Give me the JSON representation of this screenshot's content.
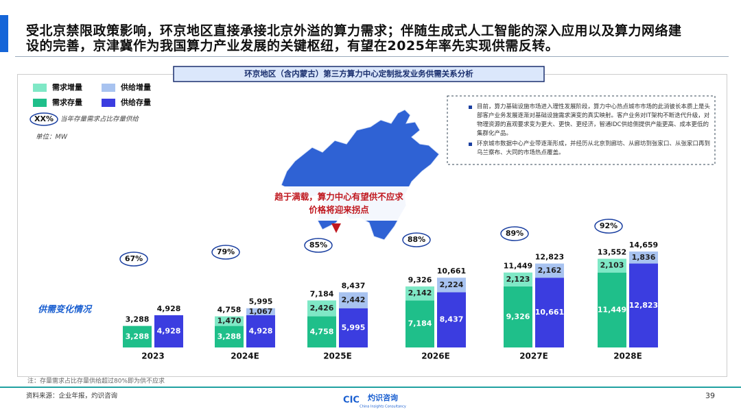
{
  "header": {
    "lines": [
      "受北京禁限政策影响，环京地区直接承接北京外溢的算力需求；伴随生成式人工智能的深入应用以及算力网络建",
      "设的完善，京津冀作为我国算力产业发展的关键枢纽，有望在2025年率先实现供需反转。"
    ]
  },
  "chart_data": {
    "type": "bar",
    "stacked": true,
    "title": "环京地区（含内蒙古）第三方算力中心定制批发业务供需关系分析",
    "unit": "单位：MW",
    "section_label": "供需变化情况",
    "ratio_legend": {
      "label": "XX%",
      "text": "当年存量需求占比存量供给"
    },
    "callout": [
      "趋于满载，算力中心有望供不应求",
      "价格将迎来拐点"
    ],
    "notes": [
      "目前，算力基础设施市场进入理性发展阶段，算力中心热点城市市场的此消彼长本质上是头部客户业务发展逐渐对基础设施需求演变的真实映射。客户业务对IT架构不断迭代升级，对物理资源的直观要求变为更大、更快、更经济，智通IDC供给侧提供产能更高、成本更低的集群化产品。",
      "环京城市数据中心产业带逐渐形成，并经历从北京到廊坊、从廊坊到张家口、从张家口再到乌兰察布、大同的市场热点覆盖。"
    ],
    "categories": [
      "2023",
      "2024E",
      "2025E",
      "2026E",
      "2027E",
      "2028E"
    ],
    "series": [
      {
        "name": "需求存量",
        "color": "#1fbf8a",
        "values": [
          3288,
          3288,
          4758,
          7184,
          9326,
          11449
        ],
        "value_labels": [
          "3,288",
          "3,288",
          "4,758",
          "7,184",
          "9,326",
          "11,449"
        ]
      },
      {
        "name": "需求增量",
        "color": "#7fe8c6",
        "values": [
          null,
          1470,
          2426,
          2142,
          2123,
          2103
        ],
        "value_labels": [
          null,
          "1,470",
          "2,426",
          "2,142",
          "2,123",
          "2,103"
        ]
      },
      {
        "name": "供给存量",
        "color": "#3b3de0",
        "values": [
          4928,
          4928,
          5995,
          8437,
          10661,
          12823
        ],
        "value_labels": [
          "4,928",
          "4,928",
          "5,995",
          "8,437",
          "10,661",
          "12,823"
        ]
      },
      {
        "name": "供给增量",
        "color": "#a8c3f0",
        "values": [
          null,
          1067,
          2442,
          2224,
          2162,
          1836
        ],
        "value_labels": [
          null,
          "1,067",
          "2,442",
          "2,224",
          "2,162",
          "1,836"
        ]
      }
    ],
    "demand_total_labels": [
      "3,288",
      "4,758",
      "7,184",
      "9,326",
      "11,449",
      "13,552"
    ],
    "supply_total_labels": [
      "4,928",
      "5,995",
      "8,437",
      "10,661",
      "12,823",
      "14,659"
    ],
    "ratios": [
      {
        "value": 67,
        "label": "67%"
      },
      {
        "value": 79,
        "label": "79%"
      },
      {
        "value": 85,
        "label": "85%"
      },
      {
        "value": 88,
        "label": "88%"
      },
      {
        "value": 89,
        "label": "89%"
      },
      {
        "value": 92,
        "label": "92%"
      }
    ]
  },
  "footer": {
    "note": "注：存量需求占比存量供给超过80%即为供不应求",
    "source": "资料来源：企业年报，灼识咨询",
    "logo": "CIC",
    "logo_name": "灼识咨询",
    "logo_sub": "China Insights Consultancy",
    "page": "39"
  }
}
